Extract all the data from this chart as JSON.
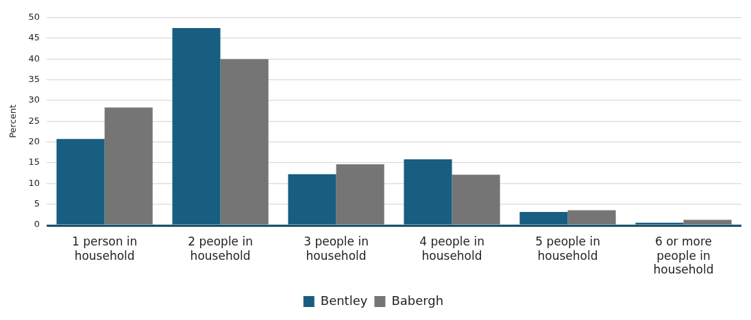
{
  "chart_data": {
    "type": "bar",
    "ylabel": "Percent",
    "categories": [
      "1 person in household",
      "2 people in household",
      "3 people in household",
      "4 people in household",
      "5 people in household",
      "6 or more people in household"
    ],
    "series": [
      {
        "name": "Bentley",
        "color": "#175e80",
        "values": [
          20.7,
          47.5,
          12.2,
          15.8,
          3.1,
          0.5
        ]
      },
      {
        "name": "Babergh",
        "color": "#757575",
        "values": [
          28.3,
          40.0,
          14.6,
          12.1,
          3.5,
          1.2
        ]
      }
    ],
    "ylim": [
      0,
      50
    ],
    "yticks": [
      0,
      5,
      10,
      15,
      20,
      25,
      30,
      35,
      40,
      45,
      50
    ],
    "grid": "y",
    "legend": "bottom"
  }
}
